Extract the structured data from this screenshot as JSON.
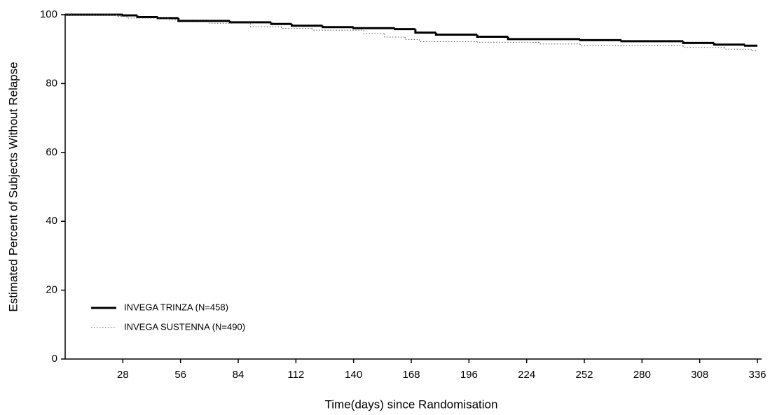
{
  "chart_data": {
    "type": "step",
    "x_label": "Time(days) since Randomisation",
    "y_label": "Estimated Percent of Subjects Without Relapse",
    "xlim": [
      0,
      336
    ],
    "xticks": [
      28,
      56,
      84,
      112,
      140,
      168,
      196,
      224,
      252,
      280,
      308,
      336
    ],
    "ylim": [
      0,
      100
    ],
    "yticks": [
      0,
      20,
      40,
      60,
      80,
      100
    ],
    "legend": "lower left",
    "series": [
      {
        "name": "INVEGA TRINZA (N=458)",
        "color": "#000000",
        "style": "solid",
        "x": [
          0,
          28,
          35,
          45,
          55,
          80,
          100,
          110,
          125,
          140,
          160,
          170,
          180,
          200,
          215,
          250,
          270,
          300,
          315,
          330,
          336
        ],
        "values": [
          100,
          99.8,
          99.3,
          99,
          98.2,
          97.8,
          97.3,
          96.8,
          96.4,
          96.1,
          95.8,
          94.8,
          94.2,
          93.6,
          92.9,
          92.6,
          92.3,
          91.8,
          91.3,
          91,
          91
        ]
      },
      {
        "name": "INVEGA SUSTENNA (N=490)",
        "color": "#555555",
        "style": "dotted",
        "x": [
          0,
          25,
          30,
          50,
          70,
          90,
          105,
          120,
          145,
          155,
          165,
          172,
          200,
          230,
          250,
          300,
          320,
          333,
          336
        ],
        "values": [
          100,
          99.5,
          99,
          98.5,
          97.5,
          96.5,
          96,
          95.5,
          94.5,
          93.5,
          92.8,
          92.2,
          92,
          91.5,
          91,
          90.5,
          90,
          89.5,
          89.5
        ]
      }
    ]
  }
}
